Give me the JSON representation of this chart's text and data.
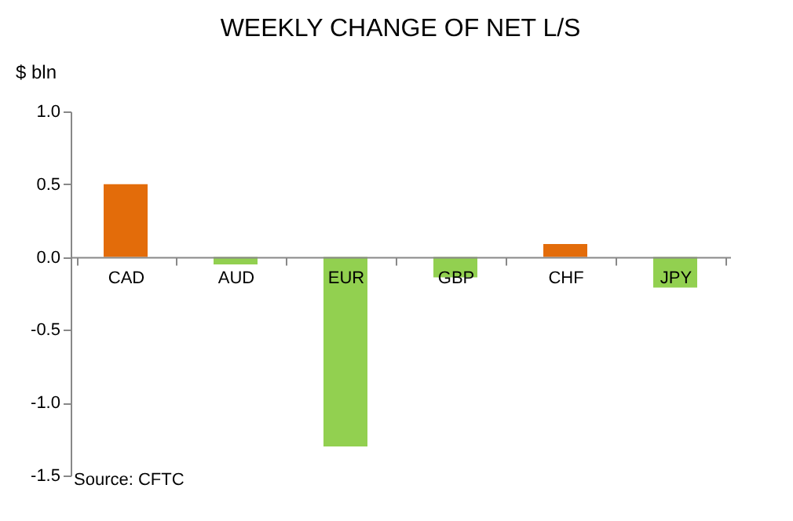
{
  "chart_data": {
    "type": "bar",
    "title": "WEEKLY CHANGE OF NET L/S",
    "ylabel": "$ bln",
    "categories": [
      "CAD",
      "AUD",
      "EUR",
      "GBP",
      "CHF",
      "JPY"
    ],
    "values": [
      0.5,
      -0.05,
      -1.3,
      -0.14,
      0.09,
      -0.21
    ],
    "colors": [
      "#e36c0a",
      "#92d050",
      "#92d050",
      "#92d050",
      "#e36c0a",
      "#92d050"
    ],
    "ylim": [
      -1.5,
      1.0
    ],
    "yticks": [
      {
        "value": -1.5,
        "label": "-1.5"
      },
      {
        "value": -1.0,
        "label": "-1.0"
      },
      {
        "value": -0.5,
        "label": "-0.5"
      },
      {
        "value": 0.0,
        "label": "0.0"
      },
      {
        "value": 0.5,
        "label": "0.5"
      },
      {
        "value": 1.0,
        "label": "1.0"
      }
    ],
    "grid": false,
    "annotations": [
      "Source: CFTC"
    ]
  }
}
